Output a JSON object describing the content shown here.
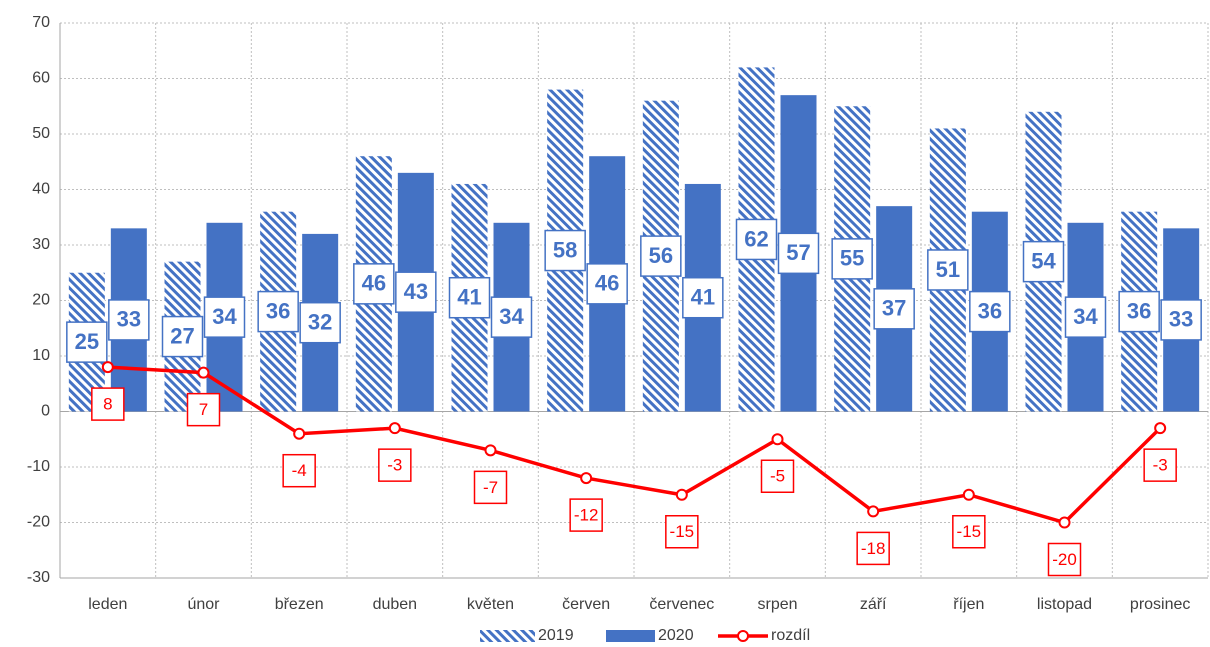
{
  "chart_data": {
    "type": "bar",
    "categories": [
      "leden",
      "únor",
      "březen",
      "duben",
      "květen",
      "červen",
      "červenec",
      "srpen",
      "září",
      "říjen",
      "listopad",
      "prosinec"
    ],
    "series": [
      {
        "name": "2019",
        "type": "bar",
        "color": "#4472c4",
        "pattern": "hatch",
        "values": [
          25,
          27,
          36,
          46,
          41,
          58,
          56,
          62,
          55,
          51,
          54,
          36
        ]
      },
      {
        "name": "2020",
        "type": "bar",
        "color": "#4472c4",
        "values": [
          33,
          34,
          32,
          43,
          34,
          46,
          41,
          57,
          37,
          36,
          34,
          33
        ]
      },
      {
        "name": "rozdíl",
        "type": "line",
        "color": "#ff0000",
        "values": [
          8,
          7,
          -4,
          -3,
          -7,
          -12,
          -15,
          -5,
          -18,
          -15,
          -20,
          -3
        ]
      }
    ],
    "ylim": [
      -30,
      70
    ],
    "yticks": [
      -30,
      -20,
      -10,
      0,
      10,
      20,
      30,
      40,
      50,
      60,
      70
    ],
    "grid": true
  }
}
